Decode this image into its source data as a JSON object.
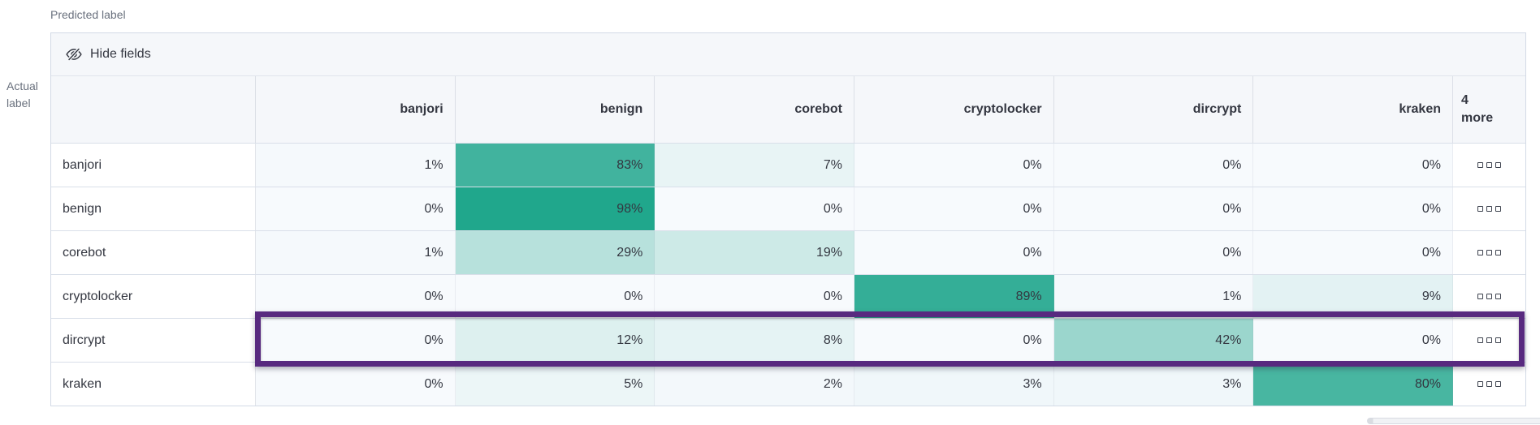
{
  "axis": {
    "predicted": "Predicted label",
    "actual": "Actual label"
  },
  "toolbar": {
    "hide_fields_label": "Hide fields",
    "hide_fields_icon": "eye-closed-icon"
  },
  "columns": [
    "banjori",
    "benign",
    "corebot",
    "cryptolocker",
    "dircrypt",
    "kraken"
  ],
  "more_columns_label": "4 more",
  "hidden_columns_indicator_icon": "boxes-horizontal-icon",
  "rows": [
    "banjori",
    "benign",
    "corebot",
    "cryptolocker",
    "dircrypt",
    "kraken"
  ],
  "highlighted_row": "dircrypt",
  "colors": {
    "heat_min": "#F7FAFD",
    "heat_max": "#1CA58A",
    "highlight_border": "#582A7F",
    "header_bg": "#F5F7FA",
    "table_border": "#D3DAE6",
    "text": "#343741",
    "muted_text": "#69707D"
  },
  "chart_data": {
    "type": "heatmap",
    "x_categories": [
      "banjori",
      "benign",
      "corebot",
      "cryptolocker",
      "dircrypt",
      "kraken"
    ],
    "y_categories": [
      "banjori",
      "benign",
      "corebot",
      "cryptolocker",
      "dircrypt",
      "kraken"
    ],
    "values_percent": [
      [
        1,
        83,
        7,
        0,
        0,
        0
      ],
      [
        0,
        98,
        0,
        0,
        0,
        0
      ],
      [
        1,
        29,
        19,
        0,
        0,
        0
      ],
      [
        0,
        0,
        0,
        89,
        1,
        9
      ],
      [
        0,
        12,
        8,
        0,
        42,
        0
      ],
      [
        0,
        5,
        2,
        3,
        3,
        80
      ]
    ],
    "value_suffix": "%",
    "xlabel": "Predicted label",
    "ylabel": "Actual label",
    "color_scale": {
      "domain": [
        0,
        100
      ],
      "min_color": "#F7FAFD",
      "max_color": "#1CA58A"
    },
    "hidden_columns_note": "4 more",
    "highlighted_row": "dircrypt",
    "legend": "off",
    "grid": "off"
  }
}
